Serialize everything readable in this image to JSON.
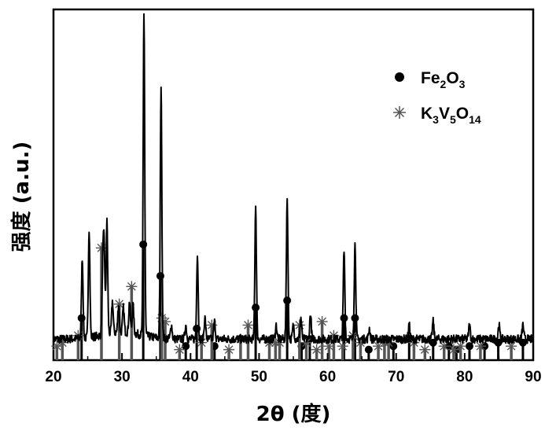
{
  "chart_data": {
    "type": "line",
    "xlabel": "2θ (度)",
    "ylabel": "强度 (a.u.)",
    "xlim": [
      20,
      90
    ],
    "xticks": [
      20,
      30,
      40,
      50,
      60,
      70,
      80,
      90
    ],
    "x_minor_step": 5,
    "yticks": "none",
    "grid": false,
    "legend": "top-right",
    "series": [
      {
        "kind": "measured-pattern",
        "stroke": "#000000",
        "baseline": 0.06,
        "noise_amplitude": 0.012,
        "peaks": [
          {
            "x": 24.2,
            "y": 0.23
          },
          {
            "x": 25.2,
            "y": 0.31
          },
          {
            "x": 27.2,
            "y": 0.19
          },
          {
            "x": 27.4,
            "y": 0.23
          },
          {
            "x": 27.8,
            "y": 0.32
          },
          {
            "x": 28.6,
            "y": 0.09
          },
          {
            "x": 29.5,
            "y": 0.08
          },
          {
            "x": 30.2,
            "y": 0.07
          },
          {
            "x": 31.1,
            "y": 0.09
          },
          {
            "x": 31.6,
            "y": 0.08
          },
          {
            "x": 33.2,
            "y": 0.92
          },
          {
            "x": 35.7,
            "y": 0.72
          },
          {
            "x": 37.2,
            "y": 0.04
          },
          {
            "x": 39.3,
            "y": 0.04
          },
          {
            "x": 41.0,
            "y": 0.24
          },
          {
            "x": 42.1,
            "y": 0.06
          },
          {
            "x": 43.5,
            "y": 0.05
          },
          {
            "x": 49.5,
            "y": 0.38
          },
          {
            "x": 52.5,
            "y": 0.04
          },
          {
            "x": 54.1,
            "y": 0.4
          },
          {
            "x": 55.0,
            "y": 0.04
          },
          {
            "x": 56.1,
            "y": 0.06
          },
          {
            "x": 57.5,
            "y": 0.07
          },
          {
            "x": 62.4,
            "y": 0.25
          },
          {
            "x": 64.0,
            "y": 0.27
          },
          {
            "x": 66.1,
            "y": 0.03
          },
          {
            "x": 71.9,
            "y": 0.04
          },
          {
            "x": 75.4,
            "y": 0.05
          },
          {
            "x": 80.7,
            "y": 0.04
          },
          {
            "x": 85.0,
            "y": 0.04
          },
          {
            "x": 88.5,
            "y": 0.04
          }
        ]
      },
      {
        "name": "Fe2O3",
        "kind": "reference-sticks",
        "marker": "dot",
        "color": "#000000",
        "sticks": [
          {
            "x": 24.1,
            "y": 0.12
          },
          {
            "x": 33.1,
            "y": 0.33
          },
          {
            "x": 35.6,
            "y": 0.24
          },
          {
            "x": 39.3,
            "y": 0.04
          },
          {
            "x": 40.9,
            "y": 0.09
          },
          {
            "x": 43.5,
            "y": 0.04
          },
          {
            "x": 49.5,
            "y": 0.15
          },
          {
            "x": 54.1,
            "y": 0.17
          },
          {
            "x": 56.2,
            "y": 0.04
          },
          {
            "x": 57.4,
            "y": 0.06
          },
          {
            "x": 62.4,
            "y": 0.12
          },
          {
            "x": 64.0,
            "y": 0.12
          },
          {
            "x": 66.0,
            "y": 0.03
          },
          {
            "x": 69.6,
            "y": 0.04
          },
          {
            "x": 71.9,
            "y": 0.06
          },
          {
            "x": 75.4,
            "y": 0.05
          },
          {
            "x": 77.7,
            "y": 0.04
          },
          {
            "x": 78.8,
            "y": 0.03
          },
          {
            "x": 80.7,
            "y": 0.04
          },
          {
            "x": 82.9,
            "y": 0.04
          },
          {
            "x": 84.9,
            "y": 0.05
          },
          {
            "x": 88.5,
            "y": 0.05
          }
        ]
      },
      {
        "name": "K3V5O14",
        "kind": "reference-sticks",
        "marker": "star",
        "color": "#555555",
        "sticks": [
          {
            "x": 20.5,
            "y": 0.04
          },
          {
            "x": 21.3,
            "y": 0.05
          },
          {
            "x": 23.6,
            "y": 0.07
          },
          {
            "x": 27.0,
            "y": 0.32
          },
          {
            "x": 29.6,
            "y": 0.16
          },
          {
            "x": 31.4,
            "y": 0.21
          },
          {
            "x": 35.8,
            "y": 0.12
          },
          {
            "x": 36.3,
            "y": 0.11
          },
          {
            "x": 38.4,
            "y": 0.03
          },
          {
            "x": 41.6,
            "y": 0.05
          },
          {
            "x": 43.1,
            "y": 0.1
          },
          {
            "x": 45.6,
            "y": 0.03
          },
          {
            "x": 47.3,
            "y": 0.06
          },
          {
            "x": 48.4,
            "y": 0.1
          },
          {
            "x": 51.5,
            "y": 0.05
          },
          {
            "x": 52.4,
            "y": 0.05
          },
          {
            "x": 53.0,
            "y": 0.05
          },
          {
            "x": 55.9,
            "y": 0.1
          },
          {
            "x": 56.9,
            "y": 0.05
          },
          {
            "x": 58.4,
            "y": 0.03
          },
          {
            "x": 59.2,
            "y": 0.11
          },
          {
            "x": 60.2,
            "y": 0.04
          },
          {
            "x": 60.9,
            "y": 0.07
          },
          {
            "x": 62.2,
            "y": 0.04
          },
          {
            "x": 63.7,
            "y": 0.07
          },
          {
            "x": 64.8,
            "y": 0.05
          },
          {
            "x": 67.4,
            "y": 0.04
          },
          {
            "x": 68.3,
            "y": 0.05
          },
          {
            "x": 68.9,
            "y": 0.05
          },
          {
            "x": 72.6,
            "y": 0.05
          },
          {
            "x": 74.2,
            "y": 0.03
          },
          {
            "x": 77.0,
            "y": 0.04
          },
          {
            "x": 78.4,
            "y": 0.03
          },
          {
            "x": 79.4,
            "y": 0.04
          },
          {
            "x": 82.3,
            "y": 0.04
          },
          {
            "x": 86.8,
            "y": 0.04
          }
        ]
      }
    ]
  },
  "legend": {
    "items": [
      {
        "series": "Fe2O3",
        "main1": "Fe",
        "sub1": "2",
        "main2": "O",
        "sub2": "3"
      },
      {
        "series": "K3V5O14",
        "main1": "K",
        "sub1": "3",
        "main2": "V",
        "sub2": "5",
        "main3": "O",
        "sub3": "14"
      }
    ]
  }
}
